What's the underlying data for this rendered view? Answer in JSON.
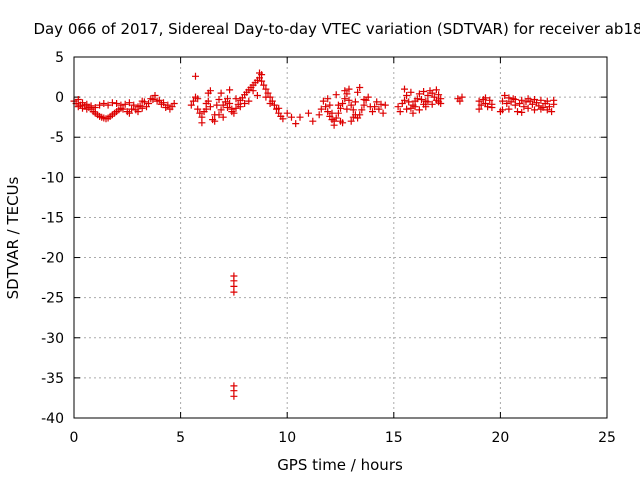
{
  "chart_data": {
    "type": "scatter",
    "title": "Day 066 of 2017, Sidereal Day-to-day VTEC variation (SDTVAR) for receiver ab18",
    "xlabel": "GPS time / hours",
    "ylabel": "SDTVAR / TECUs",
    "xlim": [
      0,
      25
    ],
    "ylim": [
      -40,
      5
    ],
    "x_ticks": [
      0,
      5,
      10,
      15,
      20,
      25
    ],
    "y_ticks": [
      5,
      0,
      -5,
      -10,
      -15,
      -20,
      -25,
      -30,
      -35,
      -40
    ],
    "grid": true,
    "legend": "none",
    "colors": {
      "marker": "#dd0000",
      "grid": "#aaaaaa",
      "axis": "#000000"
    },
    "marker": "plus",
    "series": [
      {
        "name": "SDTVAR",
        "points": [
          [
            0.0,
            -0.5
          ],
          [
            0.1,
            -0.8
          ],
          [
            0.2,
            -0.3
          ],
          [
            0.3,
            -1.0
          ],
          [
            0.4,
            -0.7
          ],
          [
            0.5,
            -1.1
          ],
          [
            0.6,
            -0.9
          ],
          [
            0.7,
            -1.3
          ],
          [
            0.8,
            -1.5
          ],
          [
            0.9,
            -1.8
          ],
          [
            1.0,
            -2.0
          ],
          [
            1.1,
            -2.2
          ],
          [
            1.2,
            -2.4
          ],
          [
            1.3,
            -2.5
          ],
          [
            1.4,
            -2.6
          ],
          [
            1.5,
            -2.7
          ],
          [
            1.6,
            -2.6
          ],
          [
            1.7,
            -2.4
          ],
          [
            1.8,
            -2.2
          ],
          [
            1.9,
            -2.0
          ],
          [
            2.0,
            -1.8
          ],
          [
            2.1,
            -1.6
          ],
          [
            2.2,
            -1.4
          ],
          [
            2.3,
            -1.5
          ],
          [
            0.2,
            -1.2
          ],
          [
            0.4,
            -1.4
          ],
          [
            0.6,
            -1.5
          ],
          [
            0.8,
            -1.1
          ],
          [
            1.0,
            -1.3
          ],
          [
            1.2,
            -1.0
          ],
          [
            1.4,
            -0.8
          ],
          [
            1.6,
            -1.0
          ],
          [
            1.8,
            -0.7
          ],
          [
            2.0,
            -0.8
          ],
          [
            2.2,
            -1.0
          ],
          [
            2.4,
            -0.9
          ],
          [
            2.6,
            -0.7
          ],
          [
            2.8,
            -1.0
          ],
          [
            3.0,
            -1.2
          ],
          [
            3.2,
            -0.5
          ],
          [
            2.5,
            -1.8
          ],
          [
            2.7,
            -1.5
          ],
          [
            2.9,
            -1.6
          ],
          [
            3.1,
            -1.1
          ],
          [
            3.3,
            -0.6
          ],
          [
            3.5,
            -0.8
          ],
          [
            3.7,
            -0.3
          ],
          [
            3.9,
            -0.5
          ],
          [
            4.1,
            -0.9
          ],
          [
            4.3,
            -1.3
          ],
          [
            4.5,
            -1.5
          ],
          [
            4.7,
            -0.8
          ],
          [
            3.4,
            -1.2
          ],
          [
            3.6,
            -0.2
          ],
          [
            3.8,
            0.2
          ],
          [
            4.0,
            -0.4
          ],
          [
            4.2,
            -0.7
          ],
          [
            4.4,
            -1.0
          ],
          [
            4.6,
            -1.2
          ],
          [
            3.0,
            -1.8
          ],
          [
            3.2,
            -1.4
          ],
          [
            2.6,
            -2.0
          ],
          [
            5.5,
            -1.0
          ],
          [
            5.6,
            -0.5
          ],
          [
            5.7,
            0.0
          ],
          [
            5.8,
            -1.5
          ],
          [
            5.9,
            -2.0
          ],
          [
            6.0,
            -2.5
          ],
          [
            6.1,
            -1.8
          ],
          [
            6.2,
            -0.8
          ],
          [
            6.3,
            -0.5
          ],
          [
            6.4,
            -1.2
          ],
          [
            6.5,
            -2.8
          ],
          [
            6.6,
            -2.2
          ],
          [
            6.7,
            -1.0
          ],
          [
            6.8,
            -0.3
          ],
          [
            6.9,
            -1.6
          ],
          [
            7.0,
            -1.0
          ],
          [
            7.1,
            -0.6
          ],
          [
            7.2,
            -0.2
          ],
          [
            7.3,
            -0.8
          ],
          [
            7.4,
            -1.5
          ],
          [
            7.5,
            -2.0
          ],
          [
            7.6,
            -1.4
          ],
          [
            7.7,
            -0.9
          ],
          [
            7.8,
            -0.4
          ],
          [
            7.9,
            -0.1
          ],
          [
            8.0,
            0.3
          ],
          [
            8.1,
            0.6
          ],
          [
            8.2,
            0.9
          ],
          [
            8.3,
            1.2
          ],
          [
            8.4,
            1.5
          ],
          [
            8.5,
            1.8
          ],
          [
            8.6,
            2.1
          ],
          [
            8.7,
            2.4
          ],
          [
            8.8,
            2.0
          ],
          [
            8.9,
            1.5
          ],
          [
            9.0,
            1.0
          ],
          [
            9.1,
            0.5
          ],
          [
            9.2,
            0.0
          ],
          [
            9.3,
            -0.5
          ],
          [
            9.4,
            -1.0
          ],
          [
            9.5,
            -1.5
          ],
          [
            9.6,
            -2.0
          ],
          [
            9.7,
            -2.4
          ],
          [
            9.8,
            -2.7
          ],
          [
            5.7,
            2.6
          ],
          [
            6.3,
            0.5
          ],
          [
            6.0,
            -3.2
          ],
          [
            6.6,
            -3.0
          ],
          [
            7.0,
            -2.5
          ],
          [
            7.4,
            -1.8
          ],
          [
            7.8,
            -1.2
          ],
          [
            8.2,
            -0.5
          ],
          [
            8.6,
            0.2
          ],
          [
            8.8,
            2.8
          ],
          [
            8.7,
            3.0
          ],
          [
            9.0,
            0.0
          ],
          [
            5.8,
            -0.2
          ],
          [
            6.2,
            -1.5
          ],
          [
            6.8,
            -2.2
          ],
          [
            7.2,
            -1.3
          ],
          [
            7.6,
            -0.2
          ],
          [
            8.0,
            -0.8
          ],
          [
            8.4,
            0.8
          ],
          [
            9.2,
            -0.8
          ],
          [
            9.6,
            -1.4
          ],
          [
            6.4,
            0.8
          ],
          [
            6.9,
            0.5
          ],
          [
            7.3,
            0.9
          ],
          [
            10.0,
            -2.0
          ],
          [
            10.2,
            -2.5
          ],
          [
            10.4,
            -3.3
          ],
          [
            10.6,
            -2.5
          ],
          [
            11.0,
            -2.0
          ],
          [
            11.2,
            -3.0
          ],
          [
            11.5,
            -2.2
          ],
          [
            11.6,
            -1.5
          ],
          [
            11.7,
            -0.5
          ],
          [
            11.8,
            -1.2
          ],
          [
            11.9,
            -1.8
          ],
          [
            12.0,
            -2.4
          ],
          [
            12.1,
            -2.8
          ],
          [
            12.2,
            -3.0
          ],
          [
            12.3,
            -2.6
          ],
          [
            12.4,
            -2.0
          ],
          [
            12.5,
            -1.4
          ],
          [
            12.6,
            -0.8
          ],
          [
            12.7,
            -0.2
          ],
          [
            12.8,
            0.4
          ],
          [
            12.9,
            -0.4
          ],
          [
            13.0,
            -1.0
          ],
          [
            13.1,
            -1.6
          ],
          [
            13.2,
            -2.2
          ],
          [
            13.3,
            -2.6
          ],
          [
            13.4,
            -2.2
          ],
          [
            13.5,
            -1.6
          ],
          [
            13.6,
            -1.0
          ],
          [
            13.7,
            -0.4
          ],
          [
            13.8,
            0.0
          ],
          [
            12.2,
            -3.5
          ],
          [
            12.6,
            -3.2
          ],
          [
            13.0,
            -3.0
          ],
          [
            12.4,
            -1.0
          ],
          [
            12.8,
            -1.5
          ],
          [
            13.2,
            -0.6
          ],
          [
            13.6,
            -0.3
          ],
          [
            13.4,
            1.2
          ],
          [
            12.9,
            1.0
          ],
          [
            12.3,
            0.3
          ],
          [
            11.9,
            -0.2
          ],
          [
            13.9,
            -1.2
          ],
          [
            14.0,
            -1.8
          ],
          [
            14.1,
            -1.2
          ],
          [
            14.2,
            -0.6
          ],
          [
            14.3,
            -1.5
          ],
          [
            14.4,
            -0.9
          ],
          [
            14.5,
            -2.0
          ],
          [
            14.6,
            -1.0
          ],
          [
            12.0,
            -1.0
          ],
          [
            12.1,
            -2.0
          ],
          [
            12.5,
            -3.0
          ],
          [
            13.1,
            -2.5
          ],
          [
            13.3,
            0.6
          ],
          [
            12.7,
            0.8
          ],
          [
            15.2,
            -1.2
          ],
          [
            15.4,
            -0.8
          ],
          [
            15.5,
            -0.4
          ],
          [
            15.6,
            0.2
          ],
          [
            15.7,
            -0.6
          ],
          [
            15.8,
            -1.4
          ],
          [
            15.9,
            -1.0
          ],
          [
            16.0,
            -0.5
          ],
          [
            16.1,
            -0.2
          ],
          [
            16.2,
            0.4
          ],
          [
            16.3,
            -0.3
          ],
          [
            16.4,
            -0.9
          ],
          [
            16.5,
            -0.5
          ],
          [
            16.6,
            0.2
          ],
          [
            16.7,
            0.8
          ],
          [
            16.8,
            0.5
          ],
          [
            16.9,
            0.0
          ],
          [
            17.0,
            -0.4
          ],
          [
            17.1,
            0.3
          ],
          [
            17.2,
            -0.2
          ],
          [
            15.3,
            -1.8
          ],
          [
            15.6,
            -1.5
          ],
          [
            15.9,
            -2.0
          ],
          [
            16.2,
            -1.6
          ],
          [
            16.5,
            -1.2
          ],
          [
            16.8,
            -0.9
          ],
          [
            17.1,
            -0.6
          ],
          [
            15.8,
            0.6
          ],
          [
            16.4,
            0.7
          ],
          [
            17.0,
            0.9
          ],
          [
            15.5,
            1.0
          ],
          [
            16.0,
            -1.2
          ],
          [
            16.6,
            -0.6
          ],
          [
            17.2,
            -0.8
          ],
          [
            18.0,
            -0.2
          ],
          [
            18.1,
            -0.5
          ],
          [
            18.2,
            0.0
          ],
          [
            19.0,
            -0.5
          ],
          [
            19.1,
            -1.0
          ],
          [
            19.2,
            -0.3
          ],
          [
            19.3,
            -0.8
          ],
          [
            19.4,
            -1.2
          ],
          [
            19.5,
            -0.4
          ],
          [
            19.6,
            -0.9
          ],
          [
            19.0,
            -1.5
          ],
          [
            19.3,
            -0.1
          ],
          [
            19.6,
            -1.3
          ],
          [
            20.0,
            -1.8
          ],
          [
            20.1,
            -0.5
          ],
          [
            20.2,
            0.2
          ],
          [
            20.3,
            -0.8
          ],
          [
            20.4,
            -1.5
          ],
          [
            20.5,
            -0.6
          ],
          [
            20.6,
            -0.2
          ],
          [
            20.7,
            -1.0
          ],
          [
            20.8,
            -1.8
          ],
          [
            20.9,
            -0.8
          ],
          [
            21.0,
            -0.4
          ],
          [
            21.1,
            -1.2
          ],
          [
            21.2,
            -0.6
          ],
          [
            21.3,
            -1.4
          ],
          [
            21.4,
            -0.5
          ],
          [
            21.5,
            -0.9
          ],
          [
            21.6,
            -1.6
          ],
          [
            21.7,
            -0.7
          ],
          [
            21.8,
            -1.1
          ],
          [
            21.9,
            -0.4
          ],
          [
            22.0,
            -1.3
          ],
          [
            22.1,
            -0.8
          ],
          [
            22.2,
            -0.5
          ],
          [
            22.3,
            -1.2
          ],
          [
            22.4,
            -1.8
          ],
          [
            22.5,
            -0.9
          ],
          [
            20.1,
            -1.6
          ],
          [
            20.4,
            -0.1
          ],
          [
            20.7,
            -0.3
          ],
          [
            21.0,
            -1.9
          ],
          [
            21.3,
            -0.2
          ],
          [
            21.6,
            -0.3
          ],
          [
            21.9,
            -1.5
          ],
          [
            22.2,
            -1.6
          ],
          [
            22.5,
            -0.4
          ],
          [
            7.5,
            -22.3
          ],
          [
            7.5,
            -22.9
          ],
          [
            7.5,
            -23.6
          ],
          [
            7.5,
            -24.3
          ],
          [
            7.5,
            -36.0
          ],
          [
            7.5,
            -36.6
          ],
          [
            7.5,
            -37.3
          ]
        ]
      }
    ]
  }
}
